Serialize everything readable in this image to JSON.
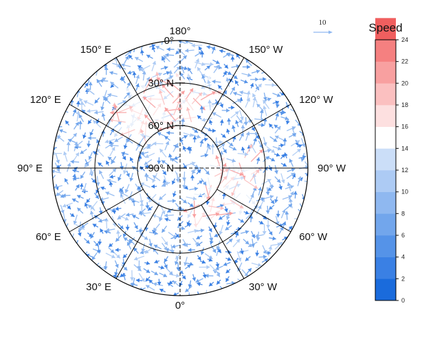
{
  "chart_data": {
    "type": "polar-vector-field",
    "title": "",
    "projection": "north polar stereographic",
    "center_label": "90° N",
    "latitude_rings": [
      {
        "lat": 0,
        "label": "0°"
      },
      {
        "lat": 30,
        "label": "30° N"
      },
      {
        "lat": 60,
        "label": "60° N"
      },
      {
        "lat": 90,
        "label": "90° N"
      }
    ],
    "longitude_labels": [
      {
        "lon": 180,
        "label": "180°"
      },
      {
        "lon": 150,
        "label": "150° E"
      },
      {
        "lon": 120,
        "label": "120° E"
      },
      {
        "lon": 90,
        "label": "90° E"
      },
      {
        "lon": 60,
        "label": "60° E"
      },
      {
        "lon": 30,
        "label": "30° E"
      },
      {
        "lon": 0,
        "label": "0°"
      },
      {
        "lon": -30,
        "label": "30° W"
      },
      {
        "lon": -60,
        "label": "60° W"
      },
      {
        "lon": -90,
        "label": "90° W"
      },
      {
        "lon": -120,
        "label": "120° W"
      },
      {
        "lon": -150,
        "label": "150° W"
      }
    ],
    "meridian_spacing_deg": 30,
    "reference_vector": {
      "label": "10",
      "magnitude": 10
    },
    "colorbar": {
      "title": "Speed",
      "min": 0,
      "max": 24,
      "step": 2,
      "tick_labels": [
        "0",
        "2",
        "4",
        "6",
        "8",
        "10",
        "12",
        "14",
        "16",
        "18",
        "20",
        "22",
        "24"
      ],
      "colors": [
        "#1a6bdc",
        "#3a80e4",
        "#5593e8",
        "#72a6ec",
        "#8fb8f0",
        "#adcbf4",
        "#cbdef8",
        "#ffffff",
        "#fde0e0",
        "#fbc0c0",
        "#f8a0a0",
        "#f58080",
        "#f05f5f"
      ]
    },
    "vector_field_note": "Dense field of wind arrows; blue = slow (0-12), red = fast (14-24). Fast red arrows concentrated in the 120°W-180° sector between 30°N and 60°N and near 60°W-90°W at 40°N-70°N."
  }
}
